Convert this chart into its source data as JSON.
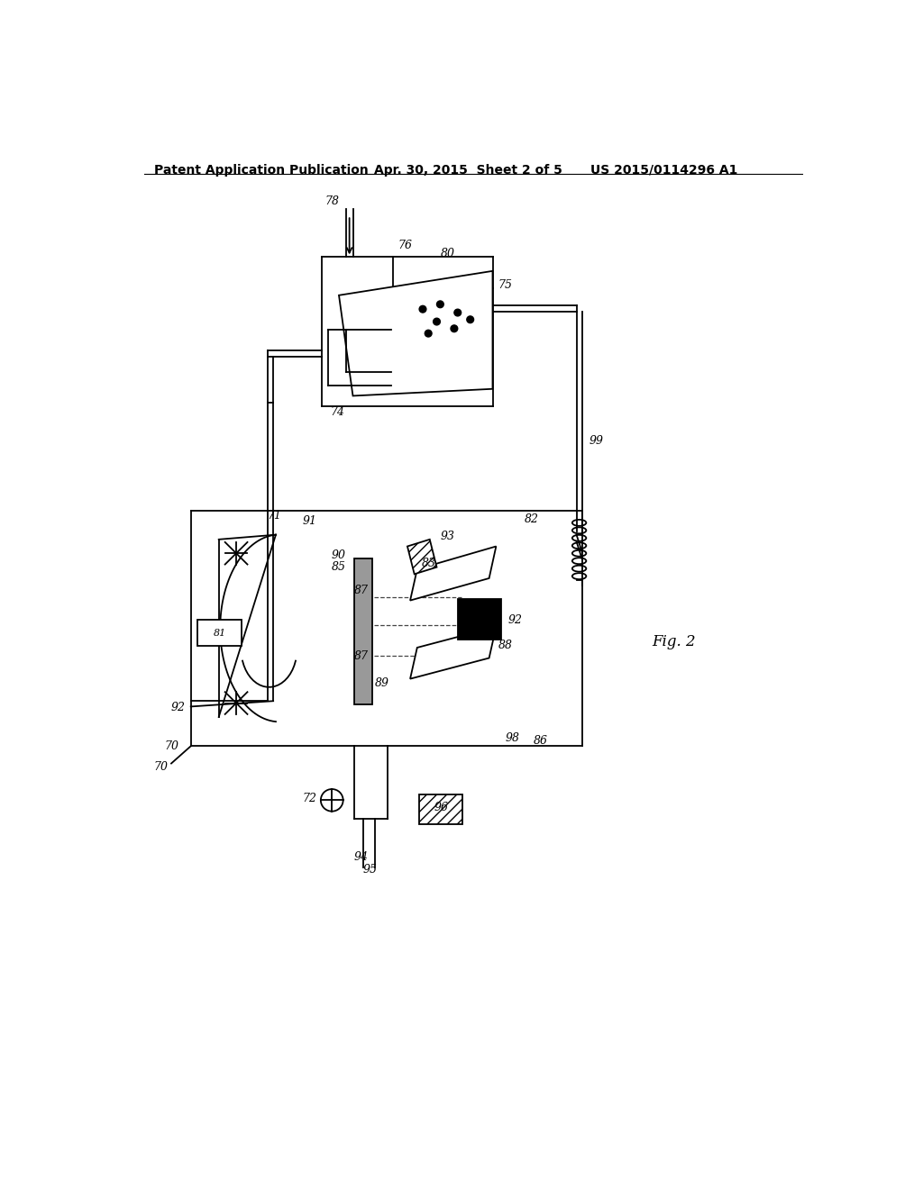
{
  "header_left": "Patent Application Publication",
  "header_mid": "Apr. 30, 2015  Sheet 2 of 5",
  "header_right": "US 2015/0114296 A1",
  "fig_label": "Fig. 2",
  "bg": "#ffffff",
  "lc": "#000000",
  "lw": 1.3,
  "fs": 9
}
